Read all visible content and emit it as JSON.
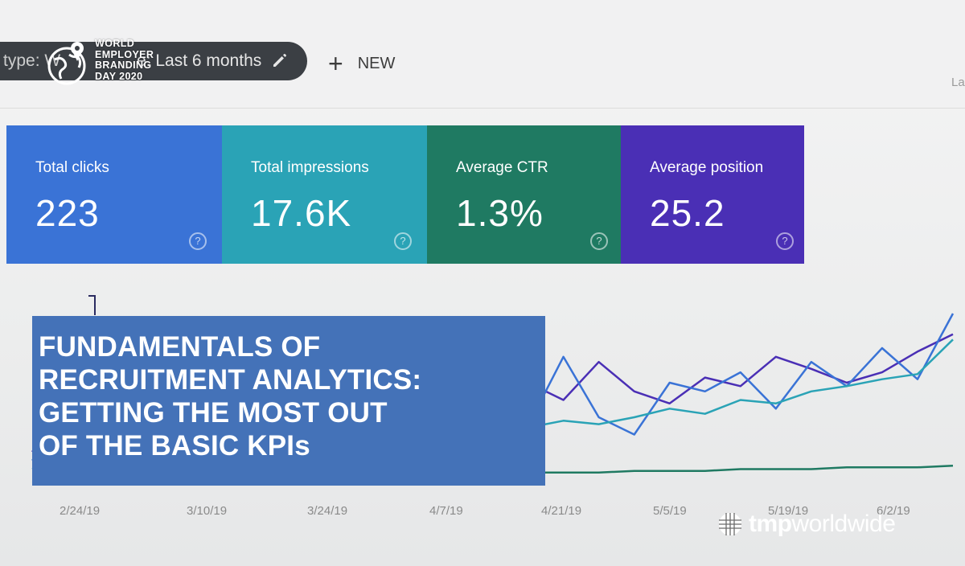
{
  "toolbar": {
    "filter_type_label": "type: W",
    "filter_date_label": "e: Last 6 months",
    "new_button_label": "NEW",
    "corner_text": "La"
  },
  "event_logo": {
    "lines": [
      "WORLD",
      "EMPLOYER",
      "BRANDING",
      "DAY 2020"
    ]
  },
  "kpis": [
    {
      "label": "Total clicks",
      "value": "223",
      "help": "?"
    },
    {
      "label": "Total impressions",
      "value": "17.6K",
      "help": "?"
    },
    {
      "label": "Average CTR",
      "value": "1.3%",
      "help": "?"
    },
    {
      "label": "Average position",
      "value": "25.2",
      "help": "?"
    }
  ],
  "colors": {
    "clicks": "#3a73d6",
    "impressions": "#2aa3b6",
    "ctr": "#1f7a62",
    "position": "#4a2fb5",
    "title_box": "#4472b8"
  },
  "title_overlay": {
    "lines": [
      "FUNDAMENTALS OF",
      "RECRUITMENT ANALYTICS:",
      "GETTING THE MOST OUT",
      "OF THE BASIC KPIs"
    ]
  },
  "chart_data": {
    "type": "line",
    "x_ticks": [
      "2/24/19",
      "3/10/19",
      "3/24/19",
      "4/7/19",
      "4/21/19",
      "5/5/19",
      "5/19/19",
      "6/2/19"
    ],
    "grid": false,
    "series": [
      {
        "color": "#4a2fb5",
        "values": [
          0.2,
          0.45,
          0.3,
          0.55,
          0.82,
          0.5,
          0.62,
          0.4,
          0.7,
          0.58,
          0.35,
          0.66,
          0.74,
          0.42,
          0.6,
          0.5,
          0.72,
          0.55,
          0.48,
          0.63,
          0.58,
          0.75,
          0.68,
          0.6,
          0.66,
          0.78,
          0.88
        ]
      },
      {
        "color": "#3a73d6",
        "values": [
          0.15,
          0.35,
          0.6,
          0.25,
          0.7,
          0.4,
          0.2,
          0.55,
          0.65,
          0.3,
          0.52,
          0.28,
          0.45,
          0.62,
          0.35,
          0.75,
          0.4,
          0.3,
          0.6,
          0.55,
          0.66,
          0.45,
          0.72,
          0.58,
          0.8,
          0.62,
          1.0
        ]
      },
      {
        "color": "#2aa3b6",
        "values": [
          0.1,
          0.18,
          0.22,
          0.2,
          0.28,
          0.24,
          0.3,
          0.27,
          0.33,
          0.3,
          0.28,
          0.35,
          0.32,
          0.3,
          0.34,
          0.38,
          0.36,
          0.4,
          0.45,
          0.42,
          0.5,
          0.48,
          0.55,
          0.58,
          0.62,
          0.65,
          0.85
        ]
      },
      {
        "color": "#1f7a62",
        "values": [
          0.02,
          0.03,
          0.03,
          0.04,
          0.04,
          0.05,
          0.05,
          0.05,
          0.06,
          0.06,
          0.06,
          0.07,
          0.07,
          0.07,
          0.08,
          0.08,
          0.08,
          0.09,
          0.09,
          0.09,
          0.1,
          0.1,
          0.1,
          0.11,
          0.11,
          0.11,
          0.12
        ]
      }
    ]
  },
  "brand_logo": {
    "bold": "tmp",
    "light": "worldwide"
  }
}
